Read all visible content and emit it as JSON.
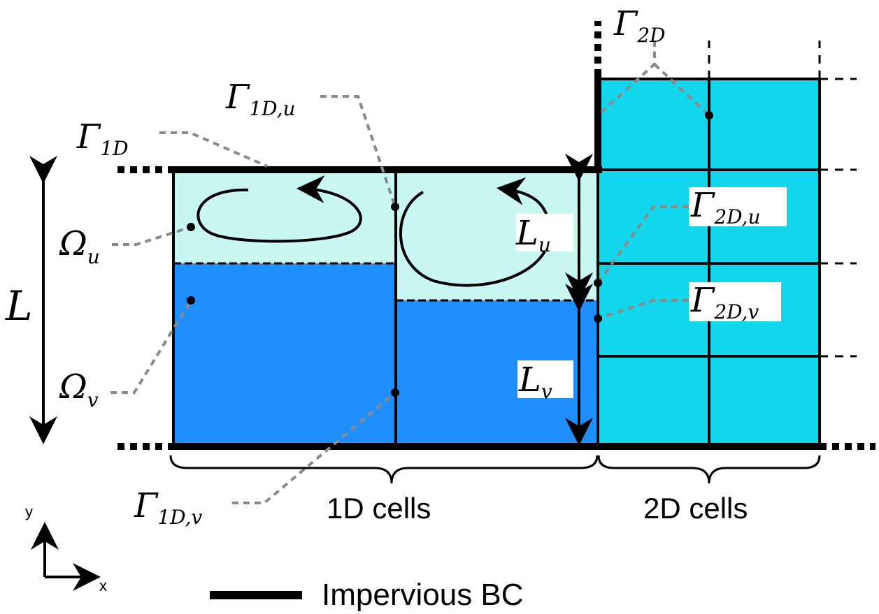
{
  "colors": {
    "upper_layer": "#c9f8f2",
    "lower_layer": "#1f8efe",
    "cells_2d": "#12d7ec",
    "leader": "#8a8a8a",
    "stroke": "#000000"
  },
  "labels": {
    "gamma_2d": {
      "main": "Γ",
      "sub": "2D"
    },
    "gamma_1d_u": {
      "main": "Γ",
      "sub": "1D,u"
    },
    "gamma_1d": {
      "main": "Γ",
      "sub": "1D"
    },
    "gamma_2d_u": {
      "main": "Γ",
      "sub": "2D,u"
    },
    "gamma_2d_v": {
      "main": "Γ",
      "sub": "2D,v"
    },
    "gamma_1d_v": {
      "main": "Γ",
      "sub": "1D,v"
    },
    "omega_u": {
      "main": "Ω",
      "sub": "u"
    },
    "omega_v": {
      "main": "Ω",
      "sub": "v"
    },
    "L": "L",
    "L_u": {
      "main": "L",
      "sub": "u"
    },
    "L_v": {
      "main": "L",
      "sub": "v"
    }
  },
  "text": {
    "cells_1d": "1D cells",
    "cells_2d": "2D cells",
    "axis_y": "y",
    "axis_x": "x",
    "legend": "Impervious BC"
  }
}
